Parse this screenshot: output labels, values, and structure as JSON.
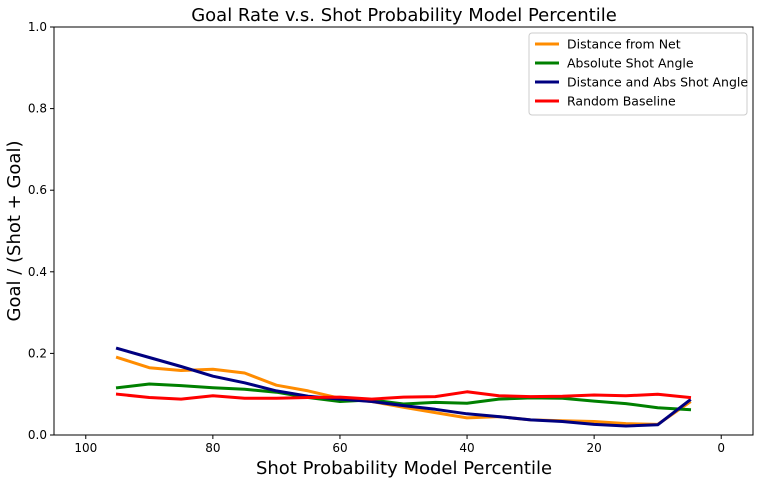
{
  "chart_data": {
    "type": "line",
    "title": "Goal Rate v.s. Shot Probability Model Percentile",
    "xlabel": "Shot Probability Model Percentile",
    "ylabel": "Goal / (Shot + Goal)",
    "xlim": [
      105,
      -5
    ],
    "ylim": [
      0,
      1
    ],
    "x_reversed": true,
    "xticks": [
      100,
      80,
      60,
      40,
      20,
      0
    ],
    "yticks": [
      0.0,
      0.2,
      0.4,
      0.6,
      0.8,
      1.0
    ],
    "ytick_labels": [
      "0.0",
      "0.2",
      "0.4",
      "0.6",
      "0.8",
      "1.0"
    ],
    "grid": false,
    "legend_position": "top-right",
    "x": [
      95,
      90,
      85,
      80,
      75,
      70,
      65,
      60,
      55,
      50,
      45,
      40,
      35,
      30,
      25,
      20,
      15,
      10,
      5
    ],
    "series": [
      {
        "name": "Distance from Net",
        "color": "#ff8c00",
        "values": [
          0.19,
          0.165,
          0.158,
          0.161,
          0.152,
          0.122,
          0.108,
          0.09,
          0.082,
          0.068,
          0.055,
          0.042,
          0.045,
          0.037,
          0.035,
          0.033,
          0.028,
          0.026,
          0.08
        ]
      },
      {
        "name": "Absolute Shot Angle",
        "color": "#008000",
        "values": [
          0.116,
          0.125,
          0.121,
          0.116,
          0.112,
          0.105,
          0.092,
          0.082,
          0.086,
          0.076,
          0.08,
          0.078,
          0.088,
          0.091,
          0.09,
          0.083,
          0.077,
          0.067,
          0.062
        ]
      },
      {
        "name": "Distance and Abs Shot Angle",
        "color": "#000080",
        "values": [
          0.212,
          0.19,
          0.168,
          0.144,
          0.128,
          0.108,
          0.095,
          0.088,
          0.082,
          0.072,
          0.063,
          0.052,
          0.045,
          0.037,
          0.033,
          0.026,
          0.022,
          0.025,
          0.085
        ]
      },
      {
        "name": "Random Baseline",
        "color": "#ff0000",
        "values": [
          0.1,
          0.092,
          0.088,
          0.096,
          0.09,
          0.09,
          0.092,
          0.093,
          0.088,
          0.093,
          0.094,
          0.106,
          0.096,
          0.094,
          0.095,
          0.098,
          0.096,
          0.1,
          0.092
        ]
      }
    ]
  }
}
